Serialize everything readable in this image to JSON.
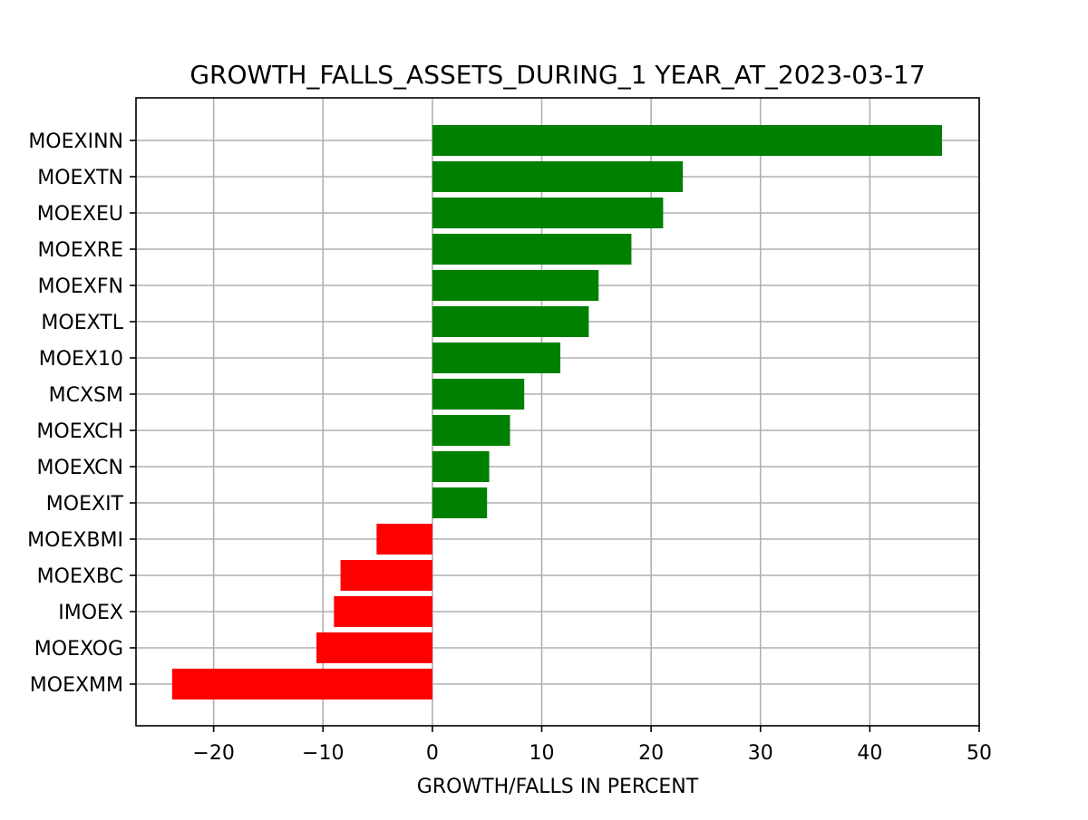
{
  "chart_data": {
    "type": "bar",
    "orientation": "horizontal",
    "title": "GROWTH_FALLS_ASSETS_DURING_1 YEAR_AT_2023-03-17",
    "xlabel": "GROWTH/FALLS IN PERCENT",
    "ylabel": "",
    "xlim": [
      -27.1,
      50
    ],
    "xticks": [
      -20,
      -10,
      0,
      10,
      20,
      30,
      40,
      50
    ],
    "xtick_labels": [
      "−20",
      "−10",
      "0",
      "10",
      "20",
      "30",
      "40",
      "50"
    ],
    "grid": true,
    "categories": [
      "MOEXINN",
      "MOEXTN",
      "MOEXEU",
      "MOEXRE",
      "MOEXFN",
      "MOEXTL",
      "MOEX10",
      "MCXSM",
      "MOEXCH",
      "MOEXCN",
      "MOEXIT",
      "MOEXBMI",
      "MOEXBC",
      "IMOEX",
      "MOEXOG",
      "MOEXMM"
    ],
    "values": [
      46.6,
      22.9,
      21.1,
      18.2,
      15.2,
      14.3,
      11.7,
      8.4,
      7.1,
      5.2,
      5.0,
      -5.1,
      -8.4,
      -9.0,
      -10.6,
      -23.8
    ],
    "colors": {
      "positive": "#008000",
      "negative": "#ff0000",
      "grid": "#b0b0b0",
      "axis": "#000000"
    }
  }
}
